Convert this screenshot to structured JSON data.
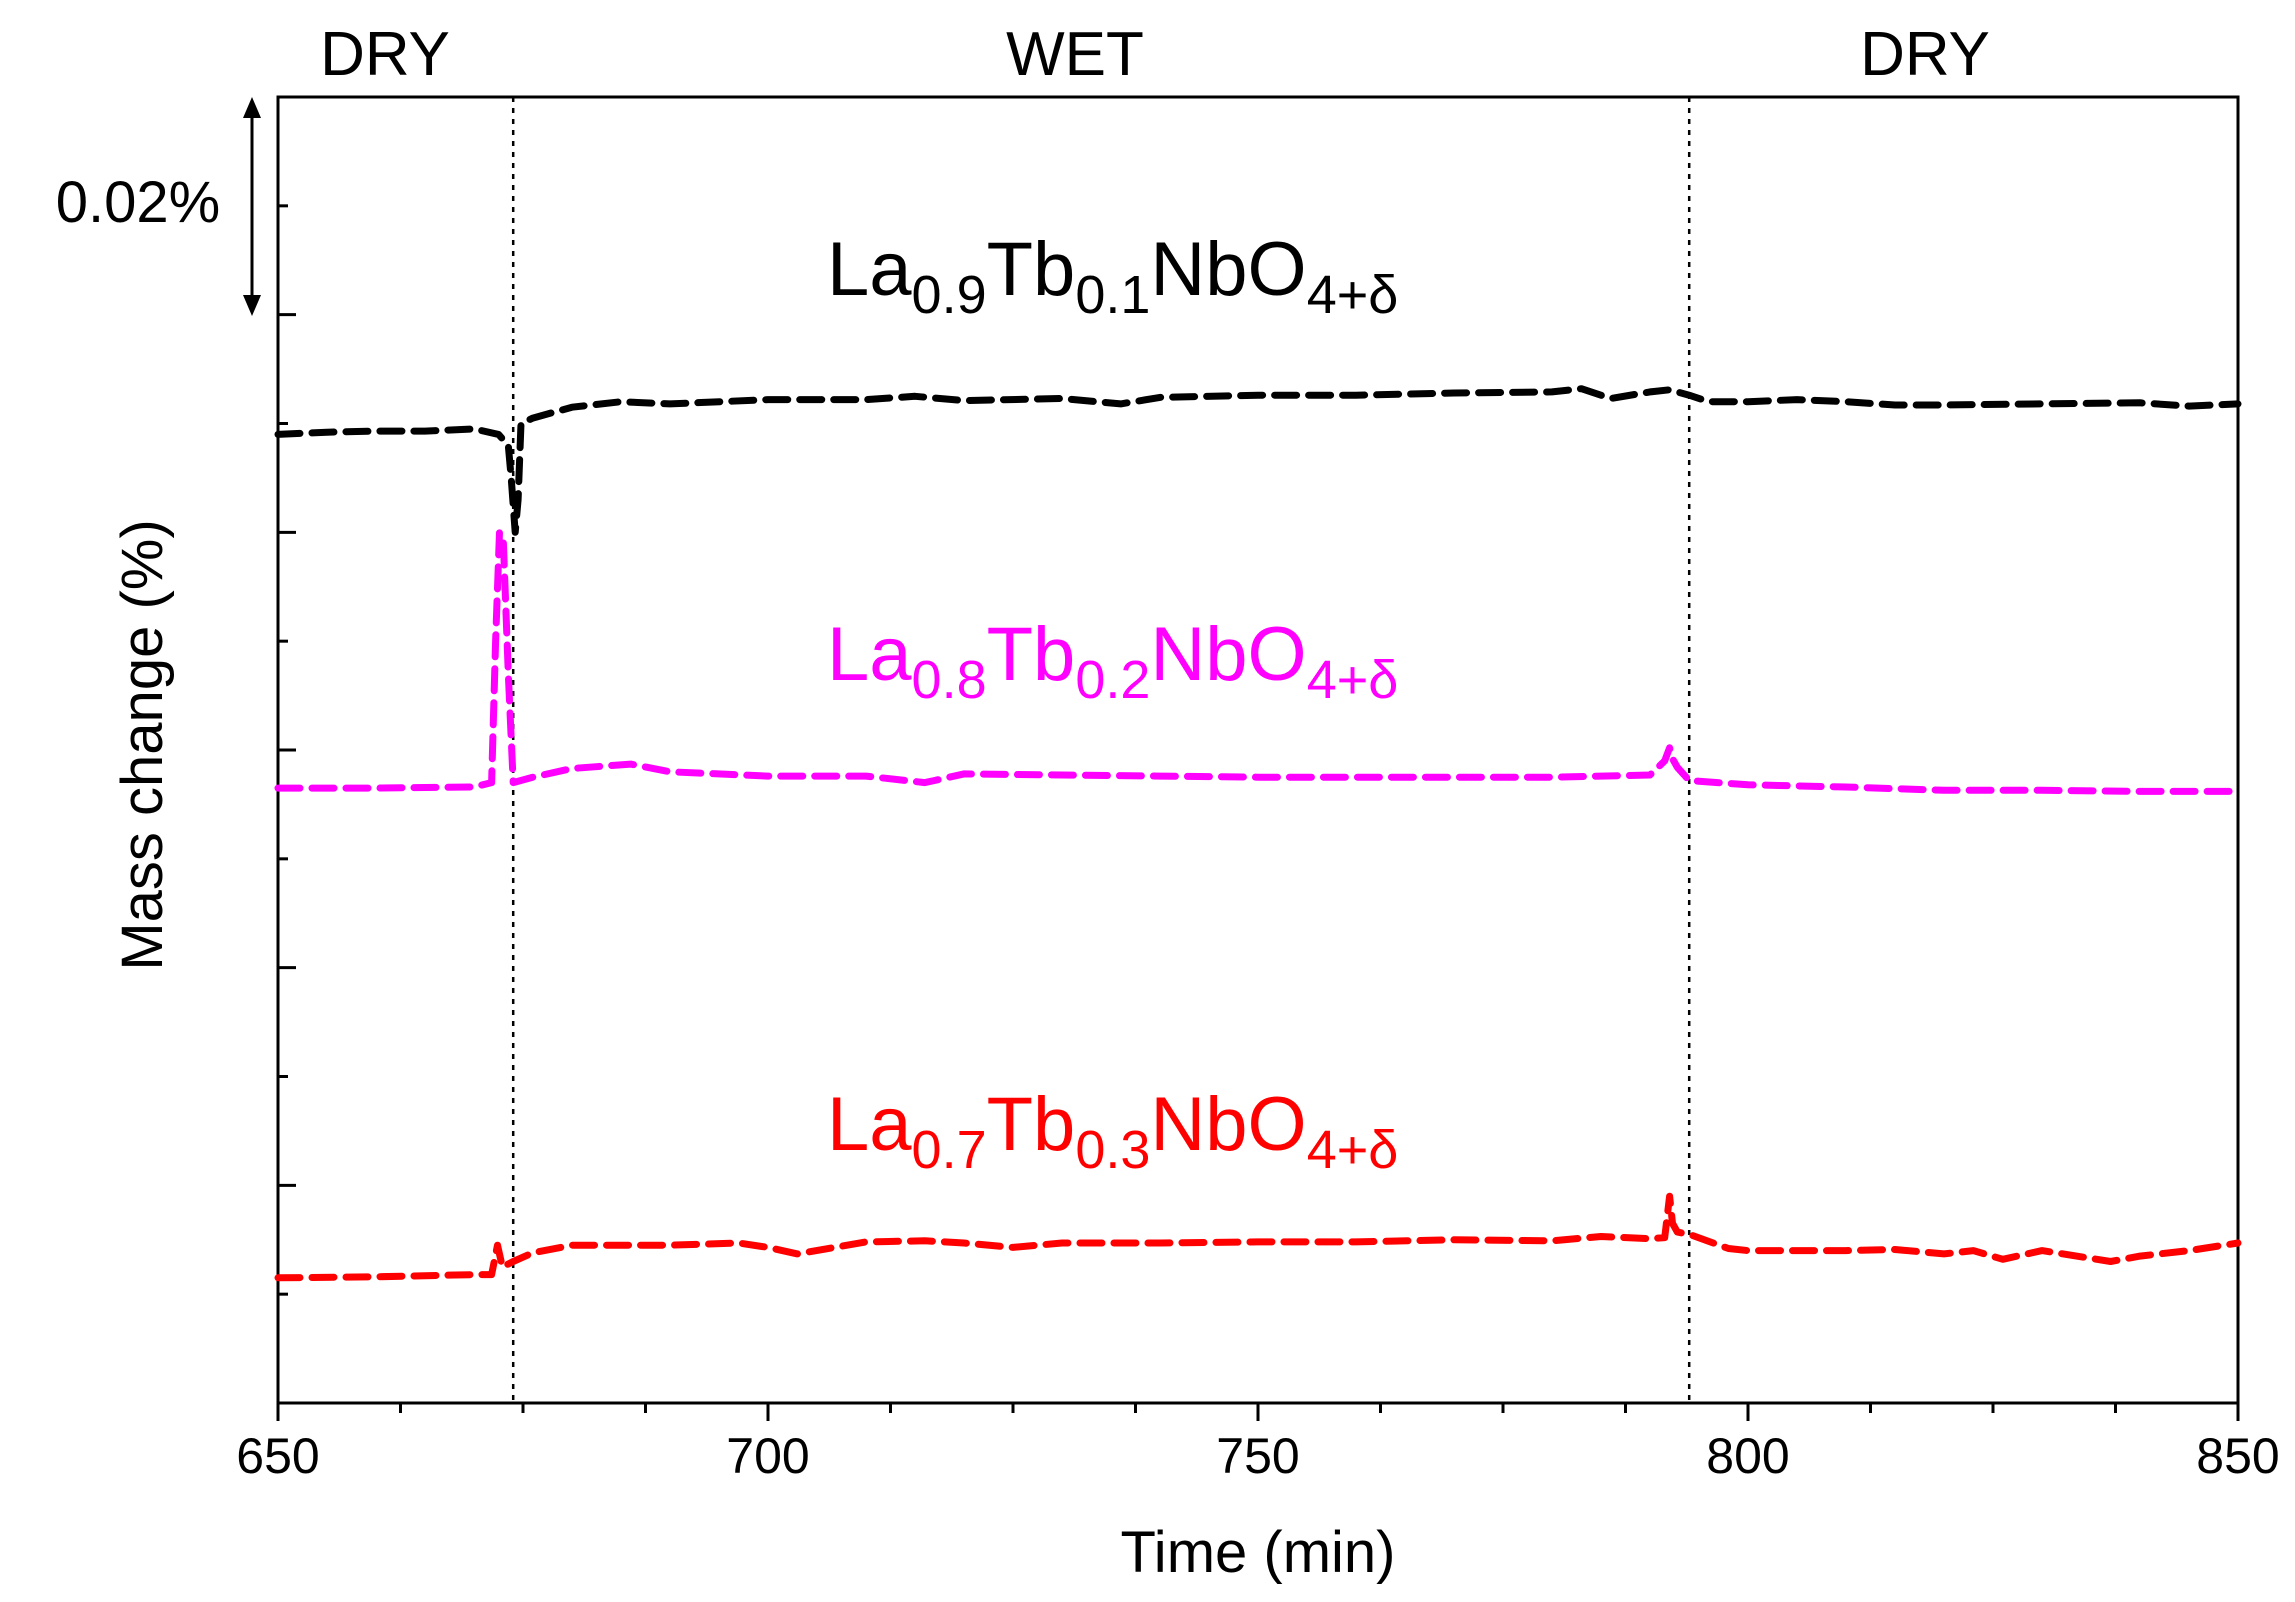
{
  "chart_data": {
    "type": "line",
    "xlabel": "Time (min)",
    "ylabel": "Mass change (%)",
    "xlim": [
      650,
      850
    ],
    "ylim": [
      0,
      0.12
    ],
    "x_ticks": [
      "650",
      "700",
      "750",
      "800",
      "850"
    ],
    "x_minor_step": 12.5,
    "y_tick_step": 0.02,
    "y_minor_step": 0.01,
    "scale_bar": {
      "label": "0.02%",
      "from": 0.1,
      "to": 0.12
    },
    "regions": [
      {
        "label": "DRY",
        "from": 650,
        "to": 674
      },
      {
        "label": "WET",
        "from": 674,
        "to": 794
      },
      {
        "label": "DRY",
        "from": 794,
        "to": 850
      }
    ],
    "switch_lines_x": [
      674,
      794
    ],
    "series": [
      {
        "name": "La0.9Tb0.1NbO4+δ",
        "label_parts": [
          "La",
          "0.9",
          "Tb",
          "0.1",
          "NbO",
          "4+δ"
        ],
        "color": "#000000",
        "x": [
          650,
          655,
          660,
          665,
          670,
          672.5,
          673.5,
          673.8,
          674.2,
          674.5,
          674.8,
          676,
          680,
          685,
          690,
          700,
          710,
          715,
          720,
          730,
          736,
          740,
          750,
          760,
          770,
          780,
          783,
          786,
          790,
          792,
          794,
          796,
          800,
          805,
          810,
          815,
          820,
          830,
          840,
          845,
          850
        ],
        "y": [
          0.089,
          0.0892,
          0.0893,
          0.0893,
          0.0895,
          0.089,
          0.088,
          0.085,
          0.08,
          0.083,
          0.09,
          0.0905,
          0.0915,
          0.092,
          0.0918,
          0.0922,
          0.0922,
          0.0925,
          0.0921,
          0.0923,
          0.0918,
          0.0924,
          0.0926,
          0.0926,
          0.0928,
          0.0929,
          0.0932,
          0.0923,
          0.0929,
          0.0931,
          0.0926,
          0.092,
          0.092,
          0.0922,
          0.092,
          0.0917,
          0.0917,
          0.0918,
          0.0919,
          0.0916,
          0.0918
        ]
      },
      {
        "name": "La0.8Tb0.2NbO4+δ",
        "label_parts": [
          "La",
          "0.8",
          "Tb",
          "0.2",
          "NbO",
          "4+δ"
        ],
        "color": "#ff00ff",
        "x": [
          650,
          660,
          670,
          671.8,
          672.2,
          672.6,
          673,
          673.5,
          674,
          676,
          680,
          686,
          690,
          700,
          710,
          716,
          717,
          720,
          730,
          740,
          750,
          760,
          770,
          780,
          790,
          791.5,
          792,
          792.3,
          792.8,
          794,
          800,
          810,
          820,
          830,
          840,
          850
        ],
        "y": [
          0.0565,
          0.0565,
          0.0566,
          0.057,
          0.07,
          0.08,
          0.079,
          0.067,
          0.057,
          0.0575,
          0.0583,
          0.0587,
          0.058,
          0.0576,
          0.0576,
          0.057,
          0.0572,
          0.0578,
          0.0577,
          0.0576,
          0.0575,
          0.0575,
          0.0575,
          0.0575,
          0.0577,
          0.059,
          0.0602,
          0.0592,
          0.0584,
          0.0572,
          0.0568,
          0.0566,
          0.0563,
          0.0563,
          0.0562,
          0.0562
        ]
      },
      {
        "name": "La0.7Tb0.3NbO4+δ",
        "label_parts": [
          "La",
          "0.7",
          "Tb",
          "0.3",
          "NbO",
          "4+δ"
        ],
        "color": "#ff0000",
        "x": [
          650,
          660,
          670,
          671.8,
          672.4,
          672.9,
          674,
          676,
          680,
          690,
          697,
          700,
          703,
          710,
          716,
          720,
          725,
          730,
          740,
          750,
          760,
          770,
          780,
          785,
          790,
          791.5,
          792,
          792.3,
          792.8,
          794,
          798,
          800,
          810,
          815,
          820,
          823,
          826,
          830,
          837,
          840,
          845,
          850
        ],
        "y": [
          0.0115,
          0.0116,
          0.0118,
          0.0118,
          0.0145,
          0.0125,
          0.013,
          0.0138,
          0.0145,
          0.0145,
          0.0147,
          0.0143,
          0.0137,
          0.0148,
          0.0149,
          0.0147,
          0.0143,
          0.0147,
          0.0147,
          0.0148,
          0.0148,
          0.015,
          0.0149,
          0.0153,
          0.0151,
          0.0152,
          0.019,
          0.0165,
          0.0157,
          0.0155,
          0.0142,
          0.014,
          0.014,
          0.0141,
          0.0137,
          0.014,
          0.0132,
          0.014,
          0.013,
          0.0135,
          0.014,
          0.0147
        ]
      }
    ]
  }
}
